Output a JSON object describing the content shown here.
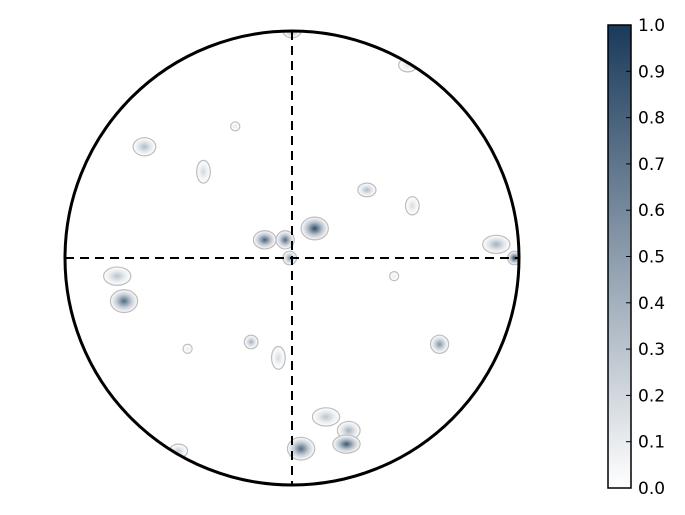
{
  "chart_data": {
    "type": "heatmap",
    "title": "",
    "xlabel": "",
    "ylabel": "",
    "projection": "polar-circle",
    "crosshair": "dashed",
    "colormap": {
      "low": "#ffffff",
      "high": "#1a3a5a",
      "contour": "#bdbdbd"
    },
    "colorbar": {
      "range": [
        0.0,
        1.0
      ],
      "ticks": [
        "0.0",
        "0.1",
        "0.2",
        "0.3",
        "0.4",
        "0.5",
        "0.6",
        "0.7",
        "0.8",
        "0.9",
        "1.0"
      ]
    },
    "points": [
      {
        "x": 0.0,
        "y": 1.0,
        "rx": 0.04,
        "ry": 0.03,
        "value": 0.45
      },
      {
        "x": 0.51,
        "y": 0.85,
        "rx": 0.04,
        "ry": 0.03,
        "value": 0.15
      },
      {
        "x": -0.65,
        "y": 0.49,
        "rx": 0.05,
        "ry": 0.04,
        "value": 0.35
      },
      {
        "x": -0.25,
        "y": 0.58,
        "rx": 0.02,
        "ry": 0.02,
        "value": 0.12
      },
      {
        "x": -0.39,
        "y": 0.38,
        "rx": 0.03,
        "ry": 0.05,
        "value": 0.2
      },
      {
        "x": 0.33,
        "y": 0.3,
        "rx": 0.04,
        "ry": 0.03,
        "value": 0.35
      },
      {
        "x": 0.53,
        "y": 0.23,
        "rx": 0.03,
        "ry": 0.04,
        "value": 0.18
      },
      {
        "x": 0.1,
        "y": 0.13,
        "rx": 0.06,
        "ry": 0.05,
        "value": 0.9
      },
      {
        "x": -0.12,
        "y": 0.08,
        "rx": 0.05,
        "ry": 0.04,
        "value": 0.8
      },
      {
        "x": -0.03,
        "y": 0.08,
        "rx": 0.04,
        "ry": 0.04,
        "value": 0.75
      },
      {
        "x": -0.01,
        "y": 0.0,
        "rx": 0.03,
        "ry": 0.03,
        "value": 0.55
      },
      {
        "x": 0.45,
        "y": -0.08,
        "rx": 0.02,
        "ry": 0.02,
        "value": 0.1
      },
      {
        "x": 0.9,
        "y": 0.06,
        "rx": 0.06,
        "ry": 0.04,
        "value": 0.4
      },
      {
        "x": 0.98,
        "y": 0.0,
        "rx": 0.03,
        "ry": 0.03,
        "value": 0.95
      },
      {
        "x": -0.77,
        "y": -0.08,
        "rx": 0.06,
        "ry": 0.04,
        "value": 0.3
      },
      {
        "x": -0.74,
        "y": -0.19,
        "rx": 0.06,
        "ry": 0.05,
        "value": 0.75
      },
      {
        "x": -0.18,
        "y": -0.37,
        "rx": 0.03,
        "ry": 0.03,
        "value": 0.4
      },
      {
        "x": -0.46,
        "y": -0.4,
        "rx": 0.02,
        "ry": 0.02,
        "value": 0.1
      },
      {
        "x": -0.06,
        "y": -0.44,
        "rx": 0.03,
        "ry": 0.05,
        "value": 0.18
      },
      {
        "x": 0.65,
        "y": -0.38,
        "rx": 0.04,
        "ry": 0.04,
        "value": 0.55
      },
      {
        "x": 0.15,
        "y": -0.7,
        "rx": 0.06,
        "ry": 0.04,
        "value": 0.3
      },
      {
        "x": 0.25,
        "y": -0.76,
        "rx": 0.05,
        "ry": 0.04,
        "value": 0.4
      },
      {
        "x": 0.24,
        "y": -0.82,
        "rx": 0.06,
        "ry": 0.04,
        "value": 0.85
      },
      {
        "x": 0.04,
        "y": -0.84,
        "rx": 0.06,
        "ry": 0.05,
        "value": 0.75
      },
      {
        "x": -0.5,
        "y": -0.85,
        "rx": 0.04,
        "ry": 0.03,
        "value": 0.25
      }
    ]
  }
}
